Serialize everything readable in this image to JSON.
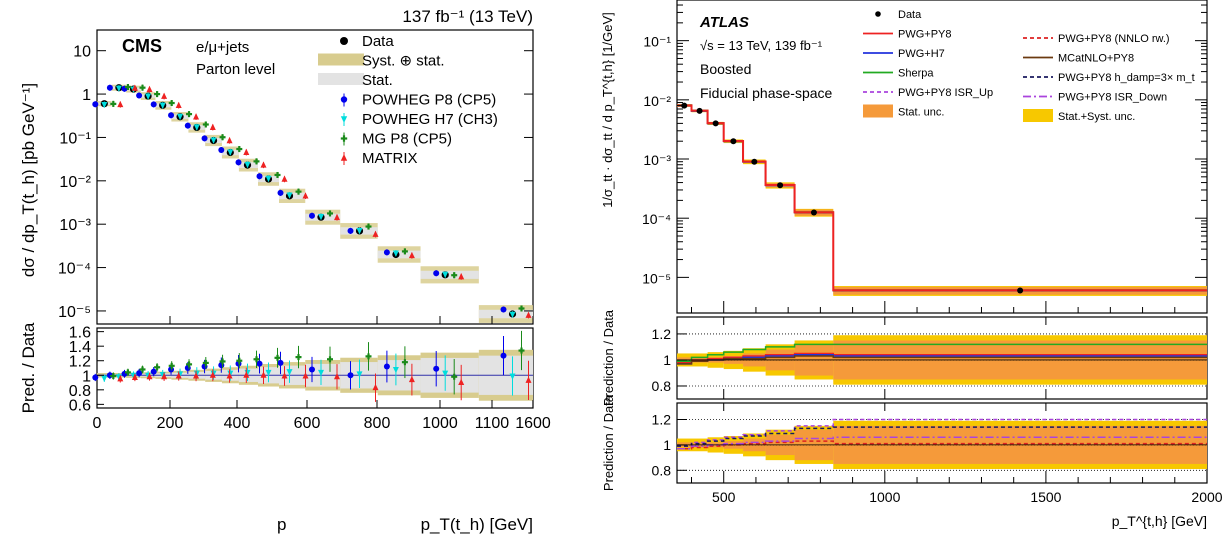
{
  "chart_data": [
    {
      "type": "scatter",
      "experiment": "CMS",
      "lumi_label": "137 fb⁻¹ (13 TeV)",
      "channel": "e/μ+jets",
      "level": "Parton level",
      "xlabel": "p_T(t_h) [GeV]",
      "ylabel_top": "dσ / dp_T(t_h) [pb GeV⁻¹]",
      "ylabel_ratio": "Pred. / Data",
      "log_y": true,
      "ylim_top": [
        5e-06,
        30
      ],
      "ylim_ratio": [
        0.55,
        1.65
      ],
      "x_tick_labels": [
        "0",
        "200",
        "400",
        "600",
        "800",
        "1000",
        "1100",
        "1600"
      ],
      "x_tick_positions": [
        0,
        200,
        400,
        600,
        800,
        1000,
        1100,
        1600
      ],
      "y_tick_labels_top": [
        "10",
        "1",
        "10⁻¹",
        "10⁻²",
        "10⁻³",
        "10⁻⁴",
        "10⁻⁵"
      ],
      "y_tick_labels_ratio": [
        "0.6",
        "0.8",
        "1",
        "1.2",
        "1.4",
        "1.6"
      ],
      "bins": [
        {
          "x": 20,
          "data": 0.6
        },
        {
          "x": 60,
          "data": 1.4
        },
        {
          "x": 100,
          "data": 1.3
        },
        {
          "x": 140,
          "data": 0.9
        },
        {
          "x": 180,
          "data": 0.55
        },
        {
          "x": 230,
          "data": 0.3
        },
        {
          "x": 280,
          "data": 0.17
        },
        {
          "x": 330,
          "data": 0.085
        },
        {
          "x": 380,
          "data": 0.045
        },
        {
          "x": 430,
          "data": 0.023
        },
        {
          "x": 490,
          "data": 0.011
        },
        {
          "x": 550,
          "data": 0.0045
        },
        {
          "x": 640,
          "data": 0.00145
        },
        {
          "x": 750,
          "data": 0.0007
        },
        {
          "x": 860,
          "data": 0.0002
        },
        {
          "x": 1010,
          "data": 6.8e-05
        },
        {
          "x": 1350,
          "data": 8.5e-06
        }
      ],
      "series": [
        {
          "name": "Data",
          "color": "#000000",
          "marker": "circle",
          "ratio": [
            1,
            1,
            1,
            1,
            1,
            1,
            1,
            1,
            1,
            1,
            1,
            1,
            1,
            1,
            1,
            1,
            1
          ]
        },
        {
          "name": "POWHEG P8 (CP5)",
          "color": "#0000ee",
          "marker": "circle",
          "ratio": [
            0.97,
            1.0,
            1.02,
            1.03,
            1.05,
            1.08,
            1.1,
            1.12,
            1.14,
            1.16,
            1.16,
            1.17,
            1.08,
            1.0,
            1.12,
            1.09,
            1.27
          ]
        },
        {
          "name": "POWHEG H7 (CH3)",
          "color": "#00dddd",
          "marker": "triangle-down",
          "ratio": [
            0.96,
            0.98,
            1.0,
            1.0,
            1.01,
            1.02,
            1.03,
            1.03,
            1.03,
            1.04,
            1.04,
            1.05,
            1.04,
            1.02,
            1.08,
            1.03,
            0.99
          ]
        },
        {
          "name": "MG P8 (CP5)",
          "color": "#1a8a1a",
          "marker": "cross",
          "ratio": [
            0.99,
            1.04,
            1.08,
            1.11,
            1.13,
            1.15,
            1.17,
            1.19,
            1.2,
            1.22,
            1.24,
            1.25,
            1.22,
            1.26,
            1.18,
            0.98,
            1.34
          ]
        },
        {
          "name": "MATRIX",
          "color": "#ee2222",
          "marker": "triangle-up",
          "ratio": [
            0.95,
            0.97,
            0.98,
            0.98,
            0.99,
            0.99,
            1.0,
            0.99,
            1.0,
            1.0,
            0.99,
            0.99,
            0.98,
            0.83,
            0.94,
            0.9,
            0.93
          ]
        }
      ],
      "legend": [
        "Data",
        "Syst. ⊕ stat.",
        "Stat.",
        "POWHEG P8 (CP5)",
        "POWHEG H7 (CH3)",
        "MG P8 (CP5)",
        "MATRIX"
      ]
    },
    {
      "type": "line",
      "experiment": "ATLAS",
      "energy_label": "√s = 13 TeV, 139 fb⁻¹",
      "region": "Boosted",
      "phase_space": "Fiducial phase-space",
      "xlabel": "p_T^{t,h} [GeV]",
      "ylabel_top": "1/σ_tt · dσ_tt / d p_T^{t,h} [1/GeV]",
      "ylabel_ratio": "Prediction / Data",
      "log_y": true,
      "xlim": [
        355,
        2000
      ],
      "x_tick_labels": [
        "500",
        "1000",
        "1500",
        "2000"
      ],
      "y_tick_labels_top": [
        "10⁻¹",
        "10⁻²",
        "10⁻³",
        "10⁻⁴",
        "10⁻⁵"
      ],
      "y_tick_labels_ratio": [
        "0.8",
        "1",
        "1.2"
      ],
      "bin_edges": [
        355,
        400,
        450,
        500,
        560,
        630,
        720,
        840,
        2000
      ],
      "data": [
        0.008,
        0.0065,
        0.004,
        0.002,
        0.0009,
        0.00036,
        0.000125,
        6e-06
      ],
      "stat_unc_ratio": [
        0.02,
        0.02,
        0.02,
        0.03,
        0.05,
        0.08,
        0.12,
        0.15
      ],
      "syst_unc_ratio": [
        0.05,
        0.05,
        0.06,
        0.07,
        0.09,
        0.12,
        0.15,
        0.19
      ],
      "series": [
        {
          "name": "Data",
          "color": "#000000"
        },
        {
          "name": "PWG+PY8",
          "color": "#ee2222",
          "ratio1": [
            0.98,
            1.0,
            1.01,
            1.02,
            1.03,
            1.04,
            1.05,
            1.04
          ]
        },
        {
          "name": "PWG+H7",
          "color": "#2233dd",
          "ratio1": [
            0.97,
            0.99,
            1.0,
            1.01,
            1.02,
            1.03,
            1.04,
            1.03
          ]
        },
        {
          "name": "Sherpa",
          "color": "#22aa22",
          "ratio1": [
            0.99,
            1.02,
            1.04,
            1.06,
            1.08,
            1.1,
            1.12,
            1.12
          ]
        },
        {
          "name": "PWG+PY8 ISR_Up",
          "color": "#aa44dd",
          "ratio2": [
            0.99,
            1.02,
            1.04,
            1.06,
            1.08,
            1.11,
            1.15,
            1.2
          ]
        },
        {
          "name": "PWG+PY8 (NNLO rw.)",
          "color": "#dd2222",
          "ratio2": [
            0.97,
            0.98,
            0.99,
            1.0,
            1.01,
            1.02,
            1.03,
            1.01
          ]
        },
        {
          "name": "MCatNLO+PY8",
          "color": "#6b3a10",
          "ratio1": [
            0.97,
            0.99,
            1.0,
            1.01,
            1.01,
            1.02,
            1.03,
            1.02
          ]
        },
        {
          "name": "PWG+PY8 h_damp=3× m_t",
          "color": "#1a1a5e",
          "ratio2": [
            0.99,
            1.01,
            1.03,
            1.05,
            1.07,
            1.09,
            1.13,
            1.14
          ]
        },
        {
          "name": "PWG+PY8 ISR_Down",
          "color": "#aa44dd",
          "ratio2": [
            0.97,
            0.99,
            1.0,
            1.01,
            1.02,
            1.03,
            1.05,
            1.06
          ]
        }
      ],
      "legend_left": [
        "Data",
        "PWG+PY8",
        "PWG+H7",
        "Sherpa",
        "PWG+PY8 ISR_Up",
        "Stat. unc."
      ],
      "legend_right": [
        "PWG+PY8 (NNLO rw.)",
        "MCatNLO+PY8",
        "PWG+PY8 h_damp=3× m_t",
        "PWG+PY8 ISR_Down",
        "Stat.+Syst. unc."
      ],
      "colors": {
        "stat": "#f59a3a",
        "syst": "#f7c800"
      }
    }
  ]
}
